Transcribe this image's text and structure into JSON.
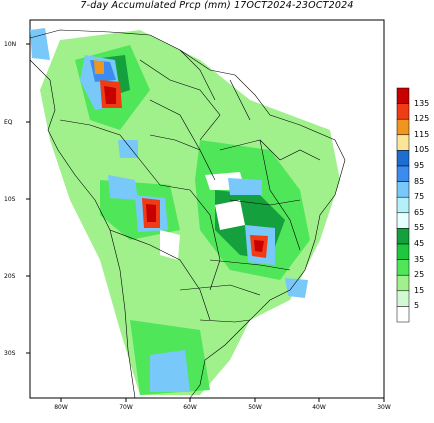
{
  "title": "7-day Accumulated Prcp (mm) 17OCT2024-23OCT2024",
  "map": {
    "lat_ticks": [
      "10N",
      "EQ",
      "10S",
      "20S",
      "30S"
    ],
    "lon_ticks": [
      "80W",
      "70W",
      "60W",
      "50W",
      "40W",
      "30W"
    ]
  },
  "colorbar": {
    "labels": [
      "135",
      "125",
      "115",
      "105",
      "95",
      "85",
      "75",
      "65",
      "55",
      "45",
      "35",
      "25",
      "15",
      "5"
    ],
    "colors": [
      "#c80000",
      "#f03c14",
      "#f0961e",
      "#fae696",
      "#1e6ed2",
      "#3c8cf0",
      "#78c8fa",
      "#b4f0fa",
      "#e6ffff",
      "#14a03c",
      "#1ec83c",
      "#50e65a",
      "#a0f08c",
      "#d2fad2",
      "#ffffff"
    ]
  }
}
